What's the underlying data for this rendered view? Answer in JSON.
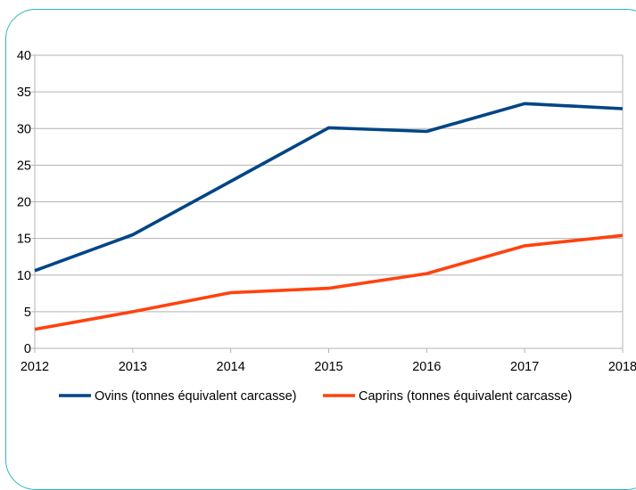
{
  "chart_data": {
    "type": "line",
    "x": [
      2012,
      2013,
      2014,
      2015,
      2016,
      2017,
      2018
    ],
    "x_tick_labels": [
      "2012",
      "2013",
      "2014",
      "2015",
      "2016",
      "2017",
      "2018"
    ],
    "y_tick_labels": [
      "0",
      "5",
      "10",
      "15",
      "20",
      "25",
      "30",
      "35",
      "40"
    ],
    "ylim": [
      0,
      40
    ],
    "grid": true,
    "legend_position": "bottom",
    "series": [
      {
        "name": "Ovins (tonnes équivalent carcasse)",
        "color": "#004586",
        "values": [
          10.6,
          15.5,
          22.8,
          30.1,
          29.6,
          33.4,
          32.7
        ]
      },
      {
        "name": "Caprins (tonnes équivalent carcasse)",
        "color": "#ff420e",
        "values": [
          2.6,
          5.0,
          7.6,
          8.2,
          10.2,
          14.0,
          15.4
        ]
      }
    ]
  }
}
